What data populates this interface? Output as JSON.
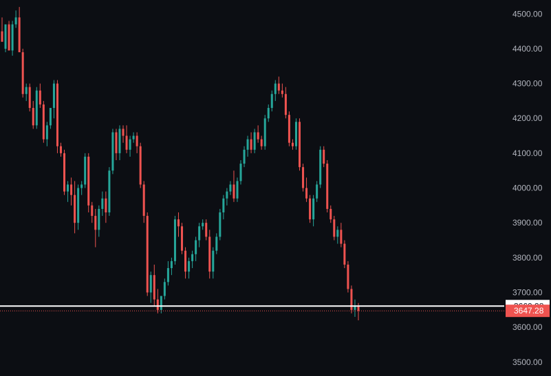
{
  "chart_data": {
    "type": "candlestick",
    "y_axis": {
      "position": "right",
      "ylim": [
        3470,
        4540
      ],
      "ticks": [
        {
          "value": 4500,
          "label": "4500.00"
        },
        {
          "value": 4400,
          "label": "4400.00"
        },
        {
          "value": 4300,
          "label": "4300.00"
        },
        {
          "value": 4200,
          "label": "4200.00"
        },
        {
          "value": 4100,
          "label": "4100.00"
        },
        {
          "value": 4000,
          "label": "4000.00"
        },
        {
          "value": 3900,
          "label": "3900.00"
        },
        {
          "value": 3800,
          "label": "3800.00"
        },
        {
          "value": 3700,
          "label": "3700.00"
        },
        {
          "value": 3600,
          "label": "3600.00"
        },
        {
          "value": 3500,
          "label": "3500.00"
        }
      ]
    },
    "horizontal_line": {
      "value": 3660.98,
      "label": "3660.98",
      "color": "#ffffff"
    },
    "last_price": {
      "value": 3647.28,
      "label": "3647.28",
      "color": "#ef5350"
    },
    "up_color": "#26a69a",
    "down_color": "#ef5350",
    "background": "#0c0e13",
    "candles": [
      [
        4450,
        4490,
        4430,
        4420
      ],
      [
        4400,
        4470,
        4390,
        4470
      ],
      [
        4470,
        4480,
        4400,
        4395
      ],
      [
        4395,
        4480,
        4380,
        4470
      ],
      [
        4470,
        4510,
        4460,
        4490
      ],
      [
        4490,
        4520,
        4390,
        4390
      ],
      [
        4390,
        4400,
        4260,
        4270
      ],
      [
        4270,
        4300,
        4250,
        4290
      ],
      [
        4290,
        4300,
        4220,
        4230
      ],
      [
        4230,
        4250,
        4170,
        4180
      ],
      [
        4180,
        4290,
        4170,
        4280
      ],
      [
        4280,
        4300,
        4230,
        4240
      ],
      [
        4240,
        4250,
        4130,
        4140
      ],
      [
        4140,
        4190,
        4120,
        4180
      ],
      [
        4180,
        4230,
        4170,
        4230
      ],
      [
        4230,
        4310,
        4200,
        4300
      ],
      [
        4300,
        4310,
        4100,
        4120
      ],
      [
        4120,
        4130,
        4090,
        4100
      ],
      [
        4100,
        4110,
        3980,
        3990
      ],
      [
        3990,
        4020,
        3960,
        4010
      ],
      [
        4010,
        4030,
        3950,
        3980
      ],
      [
        3980,
        4020,
        3870,
        3900
      ],
      [
        3900,
        4010,
        3880,
        4000
      ],
      [
        4000,
        4020,
        3980,
        4010
      ],
      [
        4010,
        4100,
        4000,
        4090
      ],
      [
        4090,
        4100,
        3930,
        3950
      ],
      [
        3950,
        3960,
        3900,
        3920
      ],
      [
        3920,
        3940,
        3830,
        3880
      ],
      [
        3880,
        3950,
        3860,
        3940
      ],
      [
        3940,
        3990,
        3920,
        3970
      ],
      [
        3970,
        3990,
        3900,
        3930
      ],
      [
        3930,
        4060,
        3920,
        4050
      ],
      [
        4050,
        4170,
        4040,
        4160
      ],
      [
        4160,
        4170,
        4080,
        4100
      ],
      [
        4100,
        4180,
        4080,
        4170
      ],
      [
        4170,
        4180,
        4130,
        4150
      ],
      [
        4150,
        4180,
        4100,
        4110
      ],
      [
        4110,
        4150,
        4090,
        4140
      ],
      [
        4140,
        4160,
        4130,
        4150
      ],
      [
        4150,
        4160,
        4100,
        4120
      ],
      [
        4120,
        4130,
        4000,
        4010
      ],
      [
        4010,
        4020,
        3900,
        3920
      ],
      [
        3920,
        3930,
        3690,
        3700
      ],
      [
        3700,
        3760,
        3670,
        3750
      ],
      [
        3750,
        3780,
        3660,
        3680
      ],
      [
        3680,
        3710,
        3640,
        3650
      ],
      [
        3650,
        3690,
        3640,
        3690
      ],
      [
        3690,
        3740,
        3680,
        3730
      ],
      [
        3730,
        3790,
        3720,
        3770
      ],
      [
        3770,
        3800,
        3750,
        3790
      ],
      [
        3790,
        3920,
        3780,
        3910
      ],
      [
        3910,
        3930,
        3860,
        3890
      ],
      [
        3890,
        3900,
        3810,
        3820
      ],
      [
        3820,
        3830,
        3740,
        3760
      ],
      [
        3760,
        3800,
        3740,
        3790
      ],
      [
        3790,
        3820,
        3770,
        3810
      ],
      [
        3810,
        3860,
        3790,
        3850
      ],
      [
        3850,
        3900,
        3830,
        3890
      ],
      [
        3890,
        3910,
        3880,
        3900
      ],
      [
        3900,
        3910,
        3850,
        3860
      ],
      [
        3860,
        3880,
        3740,
        3760
      ],
      [
        3760,
        3830,
        3740,
        3820
      ],
      [
        3820,
        3870,
        3810,
        3860
      ],
      [
        3860,
        3940,
        3850,
        3930
      ],
      [
        3930,
        3980,
        3910,
        3970
      ],
      [
        3970,
        4000,
        3950,
        3990
      ],
      [
        3990,
        4020,
        3980,
        4010
      ],
      [
        4010,
        4050,
        3960,
        3970
      ],
      [
        3970,
        4030,
        3960,
        4020
      ],
      [
        4020,
        4080,
        4010,
        4070
      ],
      [
        4070,
        4120,
        4060,
        4110
      ],
      [
        4110,
        4150,
        4090,
        4140
      ],
      [
        4140,
        4160,
        4100,
        4110
      ],
      [
        4110,
        4170,
        4100,
        4160
      ],
      [
        4160,
        4180,
        4130,
        4140
      ],
      [
        4140,
        4150,
        4110,
        4120
      ],
      [
        4120,
        4210,
        4110,
        4200
      ],
      [
        4200,
        4240,
        4190,
        4230
      ],
      [
        4230,
        4280,
        4220,
        4270
      ],
      [
        4270,
        4310,
        4250,
        4300
      ],
      [
        4300,
        4320,
        4270,
        4280
      ],
      [
        4280,
        4300,
        4260,
        4270
      ],
      [
        4270,
        4290,
        4200,
        4210
      ],
      [
        4210,
        4220,
        4120,
        4130
      ],
      [
        4130,
        4140,
        4110,
        4120
      ],
      [
        4120,
        4200,
        4110,
        4190
      ],
      [
        4190,
        4200,
        4050,
        4060
      ],
      [
        4060,
        4070,
        3990,
        4000
      ],
      [
        4000,
        4030,
        3960,
        3970
      ],
      [
        3970,
        3980,
        3900,
        3910
      ],
      [
        3910,
        3980,
        3890,
        3970
      ],
      [
        3970,
        4020,
        3960,
        4010
      ],
      [
        4010,
        4120,
        4000,
        4110
      ],
      [
        4110,
        4120,
        4060,
        4070
      ],
      [
        4070,
        4080,
        3930,
        3940
      ],
      [
        3940,
        3950,
        3900,
        3910
      ],
      [
        3910,
        3920,
        3850,
        3860
      ],
      [
        3860,
        3890,
        3840,
        3880
      ],
      [
        3880,
        3900,
        3830,
        3840
      ],
      [
        3840,
        3850,
        3770,
        3780
      ],
      [
        3780,
        3790,
        3700,
        3710
      ],
      [
        3710,
        3720,
        3640,
        3650
      ],
      [
        3650,
        3680,
        3630,
        3660
      ],
      [
        3660,
        3670,
        3620,
        3647.28
      ]
    ]
  }
}
